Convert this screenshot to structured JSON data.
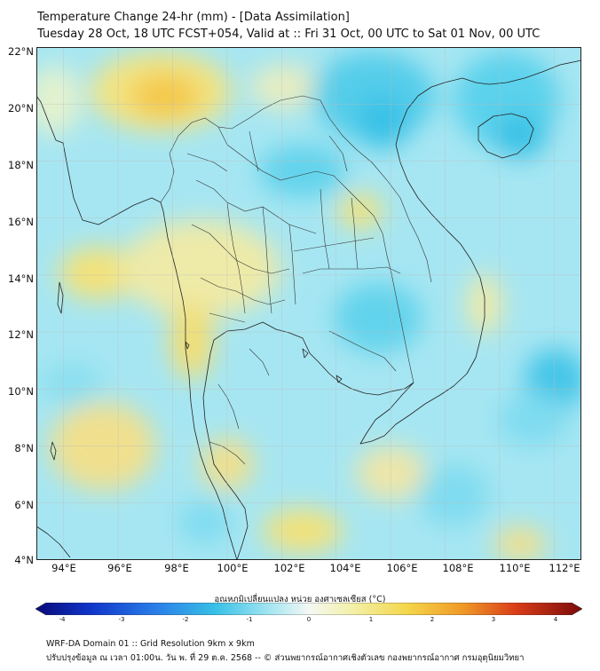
{
  "title": {
    "line1": "Temperature Change 24-hr (mm) - [Data Assimilation]",
    "line2": "Tuesday 28 Oct, 18 UTC FCST+054, Valid at :: Fri 31 Oct, 00 UTC to Sat 01 Nov, 00 UTC"
  },
  "map": {
    "lat_labels": [
      "22°N",
      "20°N",
      "18°N",
      "16°N",
      "14°N",
      "12°N",
      "10°N",
      "8°N",
      "6°N",
      "4°N"
    ],
    "lon_labels": [
      "94°E",
      "96°E",
      "98°E",
      "100°E",
      "102°E",
      "104°E",
      "106°E",
      "108°E",
      "110°E",
      "112°E"
    ],
    "lat_range": [
      4,
      22
    ],
    "lon_range": [
      93,
      113
    ]
  },
  "colorbar": {
    "label": "อุณหภูมิเปลี่ยนแปลง หน่วย องศาเซลเซียส (°C)",
    "ticks": [
      "-4",
      "-3",
      "-2",
      "-1",
      "0",
      "1",
      "2",
      "3",
      "4"
    ],
    "range": [
      -4,
      4
    ]
  },
  "footer": {
    "line1": "WRF-DA Domain 01 :: Grid Resolution 9km x 9km",
    "line2": "ปรับปรุงข้อมูล ณ เวลา 01:00น. วัน พ. ที่ 29 ต.ค. 2568 -- © ส่วนพยากรณ์อากาศเชิงตัวเลข กองพยากรณ์อากาศ กรมอุตุนิยมวิทยา"
  }
}
